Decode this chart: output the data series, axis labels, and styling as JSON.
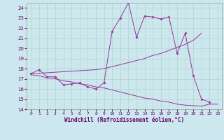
{
  "xlabel": "Windchill (Refroidissement éolien,°C)",
  "bg_color": "#cce8ee",
  "grid_color": "#b0d4c8",
  "line_color": "#993399",
  "xlim": [
    -0.5,
    23.5
  ],
  "ylim": [
    14,
    24.5
  ],
  "xticks": [
    0,
    1,
    2,
    3,
    4,
    5,
    6,
    7,
    8,
    9,
    10,
    11,
    12,
    13,
    14,
    15,
    16,
    17,
    18,
    19,
    20,
    21,
    22,
    23
  ],
  "yticks": [
    14,
    15,
    16,
    17,
    18,
    19,
    20,
    21,
    22,
    23,
    24
  ],
  "series1_x": [
    0,
    1,
    2,
    3,
    4,
    5,
    6,
    7,
    8,
    9,
    10,
    11,
    12,
    13,
    14,
    15,
    16,
    17,
    18,
    19,
    20,
    21,
    22
  ],
  "series1_y": [
    17.5,
    17.9,
    17.2,
    17.2,
    16.4,
    16.5,
    16.6,
    16.2,
    16.0,
    16.6,
    21.7,
    23.0,
    24.5,
    21.1,
    23.2,
    23.1,
    22.9,
    23.1,
    19.5,
    21.5,
    17.3,
    15.0,
    14.7
  ],
  "series2_x": [
    0,
    1,
    2,
    3,
    4,
    5,
    6,
    7,
    8,
    9,
    10,
    11,
    12,
    13,
    14,
    15,
    16,
    17,
    18,
    19,
    20,
    21
  ],
  "series2_y": [
    17.5,
    17.55,
    17.6,
    17.65,
    17.7,
    17.75,
    17.8,
    17.85,
    17.9,
    18.0,
    18.2,
    18.4,
    18.6,
    18.8,
    19.0,
    19.3,
    19.5,
    19.8,
    20.1,
    20.4,
    20.8,
    21.5
  ],
  "series3_x": [
    0,
    1,
    2,
    3,
    4,
    5,
    6,
    7,
    8,
    9,
    10,
    11,
    12,
    13,
    14,
    15,
    16,
    17,
    18,
    19,
    20,
    21,
    22,
    23
  ],
  "series3_y": [
    17.4,
    17.3,
    17.1,
    17.0,
    16.8,
    16.7,
    16.5,
    16.4,
    16.2,
    16.1,
    15.9,
    15.7,
    15.5,
    15.3,
    15.1,
    15.0,
    14.8,
    14.7,
    14.5,
    14.4,
    14.35,
    14.3,
    14.5,
    14.5
  ]
}
